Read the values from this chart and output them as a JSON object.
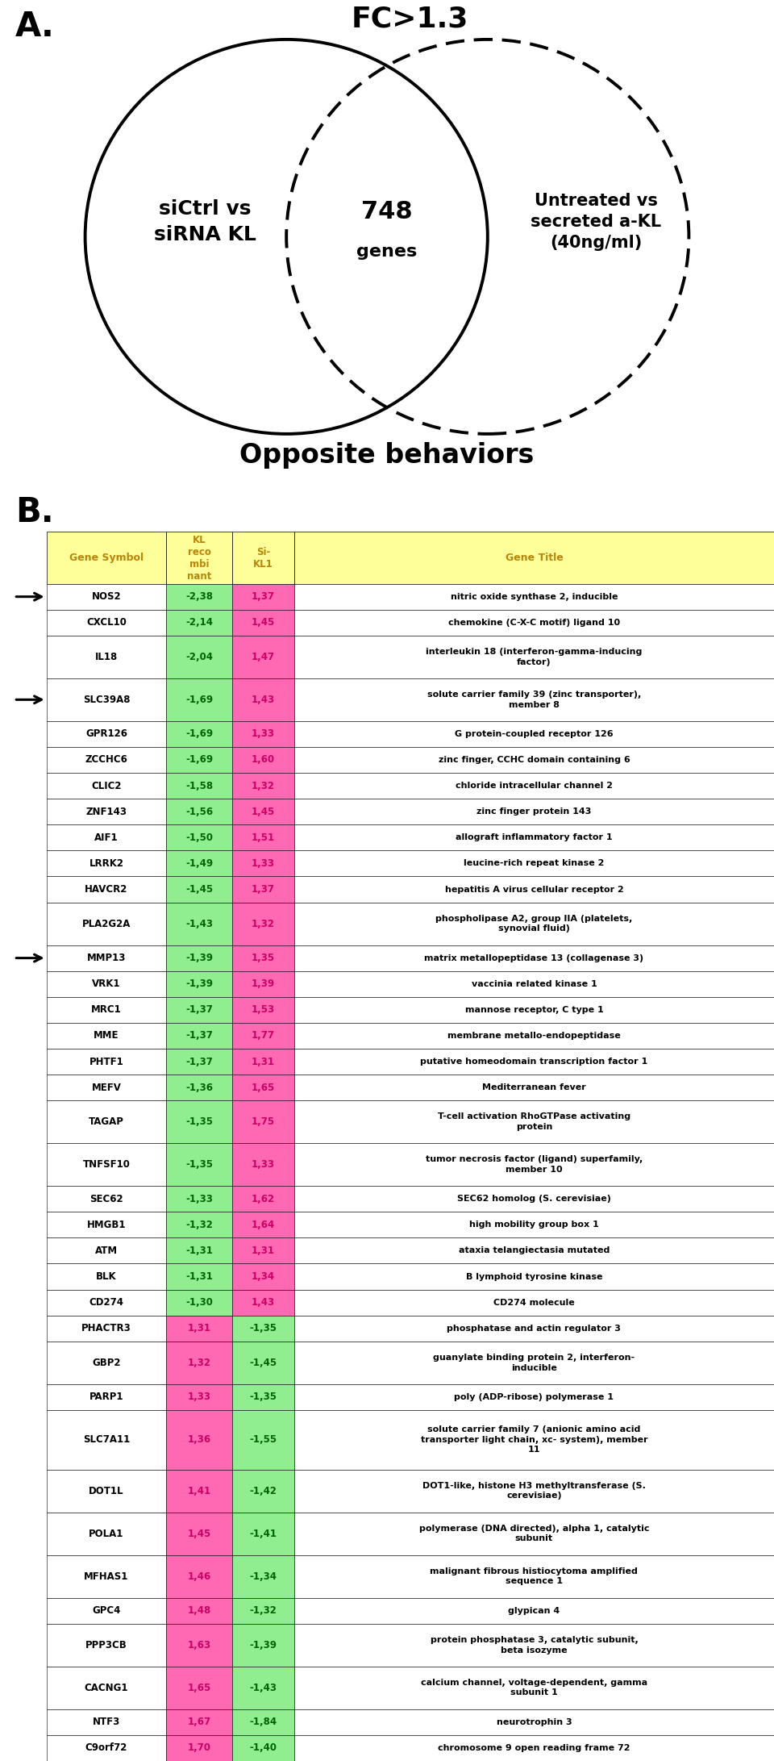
{
  "panel_a": {
    "title": "FC>1.3",
    "left_label": "siCtrl vs\nsiRNA KL",
    "center_number": "748",
    "center_label": "genes",
    "right_label": "Untreated vs\nsecreted a-KL\n(40ng/ml)",
    "bottom_label": "Opposite behaviors"
  },
  "panel_b": {
    "arrows": [
      0,
      3,
      12
    ],
    "rows": [
      [
        "NOS2",
        "-2,38",
        "1,37",
        "nitric oxide synthase 2, inducible"
      ],
      [
        "CXCL10",
        "-2,14",
        "1,45",
        "chemokine (C-X-C motif) ligand 10"
      ],
      [
        "IL18",
        "-2,04",
        "1,47",
        "interleukin 18 (interferon-gamma-inducing\nfactor)"
      ],
      [
        "SLC39A8",
        "-1,69",
        "1,43",
        "solute carrier family 39 (zinc transporter),\nmember 8"
      ],
      [
        "GPR126",
        "-1,69",
        "1,33",
        "G protein-coupled receptor 126"
      ],
      [
        "ZCCHC6",
        "-1,69",
        "1,60",
        "zinc finger, CCHC domain containing 6"
      ],
      [
        "CLIC2",
        "-1,58",
        "1,32",
        "chloride intracellular channel 2"
      ],
      [
        "ZNF143",
        "-1,56",
        "1,45",
        "zinc finger protein 143"
      ],
      [
        "AIF1",
        "-1,50",
        "1,51",
        "allograft inflammatory factor 1"
      ],
      [
        "LRRK2",
        "-1,49",
        "1,33",
        "leucine-rich repeat kinase 2"
      ],
      [
        "HAVCR2",
        "-1,45",
        "1,37",
        "hepatitis A virus cellular receptor 2"
      ],
      [
        "PLA2G2A",
        "-1,43",
        "1,32",
        "phospholipase A2, group IIA (platelets,\nsynovial fluid)"
      ],
      [
        "MMP13",
        "-1,39",
        "1,35",
        "matrix metallopeptidase 13 (collagenase 3)"
      ],
      [
        "VRK1",
        "-1,39",
        "1,39",
        "vaccinia related kinase 1"
      ],
      [
        "MRC1",
        "-1,37",
        "1,53",
        "mannose receptor, C type 1"
      ],
      [
        "MME",
        "-1,37",
        "1,77",
        "membrane metallo-endopeptidase"
      ],
      [
        "PHTF1",
        "-1,37",
        "1,31",
        "putative homeodomain transcription factor 1"
      ],
      [
        "MEFV",
        "-1,36",
        "1,65",
        "Mediterranean fever"
      ],
      [
        "TAGAP",
        "-1,35",
        "1,75",
        "T-cell activation RhoGTPase activating\nprotein"
      ],
      [
        "TNFSF10",
        "-1,35",
        "1,33",
        "tumor necrosis factor (ligand) superfamily,\nmember 10"
      ],
      [
        "SEC62",
        "-1,33",
        "1,62",
        "SEC62 homolog (S. cerevisiae)"
      ],
      [
        "HMGB1",
        "-1,32",
        "1,64",
        "high mobility group box 1"
      ],
      [
        "ATM",
        "-1,31",
        "1,31",
        "ataxia telangiectasia mutated"
      ],
      [
        "BLK",
        "-1,31",
        "1,34",
        "B lymphoid tyrosine kinase"
      ],
      [
        "CD274",
        "-1,30",
        "1,43",
        "CD274 molecule"
      ],
      [
        "PHACTR3",
        "1,31",
        "-1,35",
        "phosphatase and actin regulator 3"
      ],
      [
        "GBP2",
        "1,32",
        "-1,45",
        "guanylate binding protein 2, interferon-\ninducible"
      ],
      [
        "PARP1",
        "1,33",
        "-1,35",
        "poly (ADP-ribose) polymerase 1"
      ],
      [
        "SLC7A11",
        "1,36",
        "-1,55",
        "solute carrier family 7 (anionic amino acid\ntransporter light chain, xc- system), member\n11"
      ],
      [
        "DOT1L",
        "1,41",
        "-1,42",
        "DOT1-like, histone H3 methyltransferase (S.\ncerevisiae)"
      ],
      [
        "POLA1",
        "1,45",
        "-1,41",
        "polymerase (DNA directed), alpha 1, catalytic\nsubunit"
      ],
      [
        "MFHAS1",
        "1,46",
        "-1,34",
        "malignant fibrous histiocytoma amplified\nsequence 1"
      ],
      [
        "GPC4",
        "1,48",
        "-1,32",
        "glypican 4"
      ],
      [
        "PPP3CB",
        "1,63",
        "-1,39",
        "protein phosphatase 3, catalytic subunit,\nbeta isozyme"
      ],
      [
        "CACNG1",
        "1,65",
        "-1,43",
        "calcium channel, voltage-dependent, gamma\nsubunit 1"
      ],
      [
        "NTF3",
        "1,67",
        "-1,84",
        "neurotrophin 3"
      ],
      [
        "C9orf72",
        "1,70",
        "-1,40",
        "chromosome 9 open reading frame 72"
      ]
    ]
  }
}
